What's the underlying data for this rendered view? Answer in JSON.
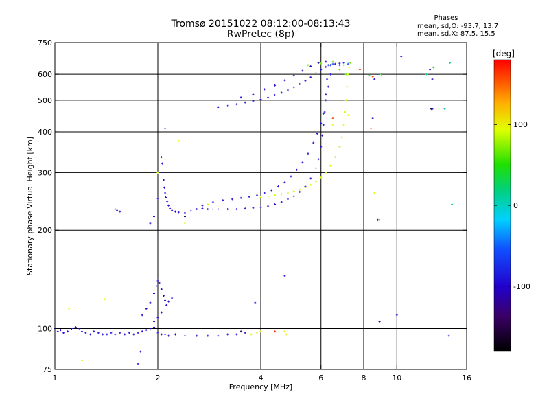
{
  "chart_data": {
    "type": "scatter",
    "title": "Tromsø 20151022 08:12:00-08:13:43",
    "subtitle": "RwPretec (8p)",
    "xlabel": "Frequency [MHz]",
    "ylabel": "Stationary phase Virtual Height [km]",
    "x_scale": "log",
    "y_scale": "log",
    "xlim": [
      1,
      16
    ],
    "ylim": [
      75,
      750
    ],
    "x_ticks": [
      1,
      2,
      4,
      6,
      8,
      10,
      16
    ],
    "y_ticks": [
      75,
      100,
      200,
      300,
      400,
      500,
      600,
      750
    ],
    "x_grid": [
      2,
      4,
      6,
      8,
      10
    ],
    "y_grid": [
      100,
      200,
      300,
      400,
      500,
      600
    ],
    "phases_box": {
      "title": "Phases",
      "o_line": "mean, sd,O: -93.7, 13.7",
      "x_line": "mean, sd,X:  87.5, 15.5"
    },
    "colorbar": {
      "label": "[deg]",
      "range": [
        -180,
        180
      ],
      "ticks": [
        100,
        0,
        -100
      ]
    },
    "series": [
      {
        "phase_deg": -95,
        "points": [
          [
            1.0,
            100
          ],
          [
            1.02,
            98
          ],
          [
            1.04,
            99
          ],
          [
            1.06,
            97
          ],
          [
            1.09,
            98
          ],
          [
            1.12,
            100
          ],
          [
            1.15,
            101
          ],
          [
            1.18,
            100
          ],
          [
            1.2,
            98
          ],
          [
            1.23,
            97
          ],
          [
            1.27,
            96
          ],
          [
            1.3,
            98
          ],
          [
            1.34,
            97
          ],
          [
            1.38,
            96
          ],
          [
            1.42,
            96
          ],
          [
            1.46,
            97
          ],
          [
            1.5,
            96
          ],
          [
            1.55,
            97
          ],
          [
            1.6,
            96
          ],
          [
            1.65,
            97
          ],
          [
            1.7,
            96
          ],
          [
            1.75,
            97
          ],
          [
            1.8,
            98
          ],
          [
            1.85,
            99
          ],
          [
            1.9,
            100
          ],
          [
            1.95,
            101
          ],
          [
            2.0,
            97
          ],
          [
            2.05,
            96
          ],
          [
            2.1,
            96
          ],
          [
            2.15,
            95
          ],
          [
            2.25,
            96
          ],
          [
            2.4,
            95
          ],
          [
            2.6,
            95
          ],
          [
            2.8,
            95
          ],
          [
            3.0,
            95
          ],
          [
            3.2,
            96
          ],
          [
            3.4,
            96
          ],
          [
            3.6,
            97
          ]
        ]
      },
      {
        "phase_deg": -100,
        "points": [
          [
            1.8,
            110
          ],
          [
            1.85,
            115
          ],
          [
            1.9,
            120
          ],
          [
            1.95,
            128
          ],
          [
            1.98,
            135
          ],
          [
            2.0,
            140
          ],
          [
            2.02,
            138
          ],
          [
            2.05,
            132
          ],
          [
            2.08,
            126
          ],
          [
            2.1,
            122
          ],
          [
            2.12,
            118
          ],
          [
            2.15,
            121
          ],
          [
            2.2,
            124
          ],
          [
            1.95,
            105
          ],
          [
            2.0,
            108
          ],
          [
            2.05,
            112
          ]
        ]
      },
      {
        "phase_deg": -95,
        "points": [
          [
            2.05,
            335
          ],
          [
            2.06,
            320
          ],
          [
            2.07,
            300
          ],
          [
            2.08,
            285
          ],
          [
            2.09,
            270
          ],
          [
            2.1,
            260
          ],
          [
            2.11,
            252
          ],
          [
            2.13,
            245
          ],
          [
            2.15,
            238
          ],
          [
            2.17,
            233
          ],
          [
            2.2,
            230
          ],
          [
            2.25,
            228
          ],
          [
            2.3,
            227
          ],
          [
            2.4,
            226
          ],
          [
            2.5,
            229
          ],
          [
            2.6,
            232
          ],
          [
            2.7,
            233
          ],
          [
            2.8,
            232
          ],
          [
            2.9,
            232
          ],
          [
            3.0,
            232
          ],
          [
            3.2,
            232
          ],
          [
            3.4,
            232
          ],
          [
            3.6,
            233
          ],
          [
            3.8,
            234
          ],
          [
            4.0,
            235
          ],
          [
            4.2,
            237
          ],
          [
            4.4,
            240
          ],
          [
            4.6,
            244
          ],
          [
            4.8,
            249
          ],
          [
            5.0,
            254
          ],
          [
            5.2,
            262
          ],
          [
            5.4,
            272
          ],
          [
            5.6,
            288
          ],
          [
            5.8,
            310
          ],
          [
            5.9,
            330
          ],
          [
            6.0,
            360
          ],
          [
            6.05,
            390
          ],
          [
            6.1,
            420
          ],
          [
            6.15,
            460
          ],
          [
            6.2,
            520
          ],
          [
            6.25,
            580
          ]
        ]
      },
      {
        "phase_deg": -90,
        "points": [
          [
            2.7,
            238
          ],
          [
            2.9,
            244
          ],
          [
            3.1,
            247
          ],
          [
            3.3,
            249
          ],
          [
            3.5,
            251
          ],
          [
            3.7,
            253
          ],
          [
            3.9,
            256
          ],
          [
            4.1,
            260
          ],
          [
            4.3,
            265
          ],
          [
            4.5,
            272
          ],
          [
            4.7,
            280
          ],
          [
            4.9,
            292
          ],
          [
            5.1,
            306
          ],
          [
            5.3,
            322
          ],
          [
            5.5,
            343
          ],
          [
            5.7,
            370
          ],
          [
            5.85,
            395
          ],
          [
            6.0,
            425
          ],
          [
            6.1,
            455
          ],
          [
            6.2,
            500
          ],
          [
            6.3,
            550
          ],
          [
            6.4,
            600
          ]
        ]
      },
      {
        "phase_deg": 88,
        "points": [
          [
            4.0,
            252
          ],
          [
            4.2,
            254
          ],
          [
            4.4,
            256
          ],
          [
            4.6,
            258
          ],
          [
            4.8,
            260
          ],
          [
            5.0,
            263
          ],
          [
            5.2,
            266
          ],
          [
            5.4,
            270
          ],
          [
            5.6,
            275
          ],
          [
            5.8,
            282
          ],
          [
            6.0,
            290
          ],
          [
            6.2,
            300
          ],
          [
            6.4,
            315
          ],
          [
            6.6,
            335
          ],
          [
            6.8,
            360
          ],
          [
            6.9,
            385
          ],
          [
            7.0,
            420
          ],
          [
            7.05,
            460
          ],
          [
            7.1,
            500
          ],
          [
            7.15,
            550
          ],
          [
            7.2,
            600
          ],
          [
            7.25,
            630
          ]
        ]
      },
      {
        "phase_deg": -90,
        "points": [
          [
            3.0,
            475
          ],
          [
            3.2,
            480
          ],
          [
            3.4,
            486
          ],
          [
            3.6,
            492
          ],
          [
            3.8,
            497
          ],
          [
            4.0,
            503
          ],
          [
            4.2,
            510
          ],
          [
            4.4,
            518
          ],
          [
            4.6,
            527
          ],
          [
            4.8,
            537
          ],
          [
            5.0,
            548
          ],
          [
            5.2,
            560
          ],
          [
            5.4,
            573
          ],
          [
            5.6,
            588
          ],
          [
            5.8,
            605
          ],
          [
            6.0,
            620
          ],
          [
            6.2,
            632
          ],
          [
            6.4,
            640
          ],
          [
            6.6,
            645
          ],
          [
            6.8,
            648
          ],
          [
            7.0,
            650
          ]
        ]
      },
      {
        "phase_deg": -98,
        "points": [
          [
            3.5,
            510
          ],
          [
            3.8,
            520
          ],
          [
            4.1,
            540
          ],
          [
            4.4,
            555
          ],
          [
            4.7,
            575
          ],
          [
            5.0,
            595
          ],
          [
            5.3,
            615
          ],
          [
            5.6,
            635
          ],
          [
            5.9,
            650
          ],
          [
            6.2,
            655
          ]
        ]
      },
      {
        "phase_deg": -60,
        "points": [
          [
            6.3,
            640
          ],
          [
            6.5,
            645
          ],
          [
            6.8,
            640
          ],
          [
            7.0,
            650
          ],
          [
            7.2,
            645
          ]
        ]
      },
      {
        "phase_deg": 70,
        "points": [
          [
            5.5,
            640
          ],
          [
            6.0,
            648
          ],
          [
            6.5,
            655
          ],
          [
            7.0,
            640
          ],
          [
            7.3,
            650
          ],
          [
            6.8,
            620
          ],
          [
            7.1,
            600
          ]
        ]
      },
      {
        "phase_deg": 100,
        "points": [
          [
            3.9,
            97
          ],
          [
            4.0,
            98
          ],
          [
            4.7,
            98
          ],
          [
            4.75,
            96
          ],
          [
            4.8,
            99
          ],
          [
            3.75,
            96
          ]
        ]
      },
      {
        "phase_deg": 95,
        "points": [
          [
            1.1,
            115
          ],
          [
            1.4,
            123
          ],
          [
            1.2,
            80
          ],
          [
            2.4,
            210
          ],
          [
            2.8,
            240
          ],
          [
            2.0,
            300
          ],
          [
            2.1,
            330
          ],
          [
            2.3,
            375
          ],
          [
            6.5,
            420
          ],
          [
            7.2,
            450
          ],
          [
            8.6,
            260
          ]
        ]
      },
      {
        "phase_deg": -95,
        "points": [
          [
            1.5,
            232
          ],
          [
            1.52,
            230
          ],
          [
            1.55,
            228
          ],
          [
            1.9,
            210
          ],
          [
            1.95,
            220
          ],
          [
            2.0,
            250
          ],
          [
            2.1,
            410
          ],
          [
            3.85,
            120
          ],
          [
            4.7,
            145
          ],
          [
            8.9,
            105
          ],
          [
            10.0,
            110
          ],
          [
            10.3,
            680
          ],
          [
            12.5,
            620
          ],
          [
            12.7,
            580
          ],
          [
            12.7,
            470
          ],
          [
            14.2,
            95
          ],
          [
            8.6,
            580
          ],
          [
            8.5,
            440
          ],
          [
            1.75,
            78
          ],
          [
            1.78,
            85
          ]
        ]
      },
      {
        "phase_deg": 160,
        "points": [
          [
            4.4,
            98
          ],
          [
            6.5,
            440
          ],
          [
            7.8,
            620
          ],
          [
            8.4,
            410
          ],
          [
            8.5,
            590
          ]
        ]
      },
      {
        "phase_deg": 40,
        "points": [
          [
            8.3,
            595
          ],
          [
            9.0,
            600
          ],
          [
            12.8,
            630
          ]
        ]
      },
      {
        "phase_deg": 10,
        "points": [
          [
            13.8,
            470
          ],
          [
            8.9,
            215
          ],
          [
            12.2,
            600
          ],
          [
            14.5,
            240
          ],
          [
            14.3,
            650
          ]
        ]
      },
      {
        "phase_deg": -150,
        "points": [
          [
            2.4,
            220
          ],
          [
            3.5,
            98
          ],
          [
            8.8,
            215
          ],
          [
            12.6,
            470
          ]
        ]
      }
    ]
  }
}
